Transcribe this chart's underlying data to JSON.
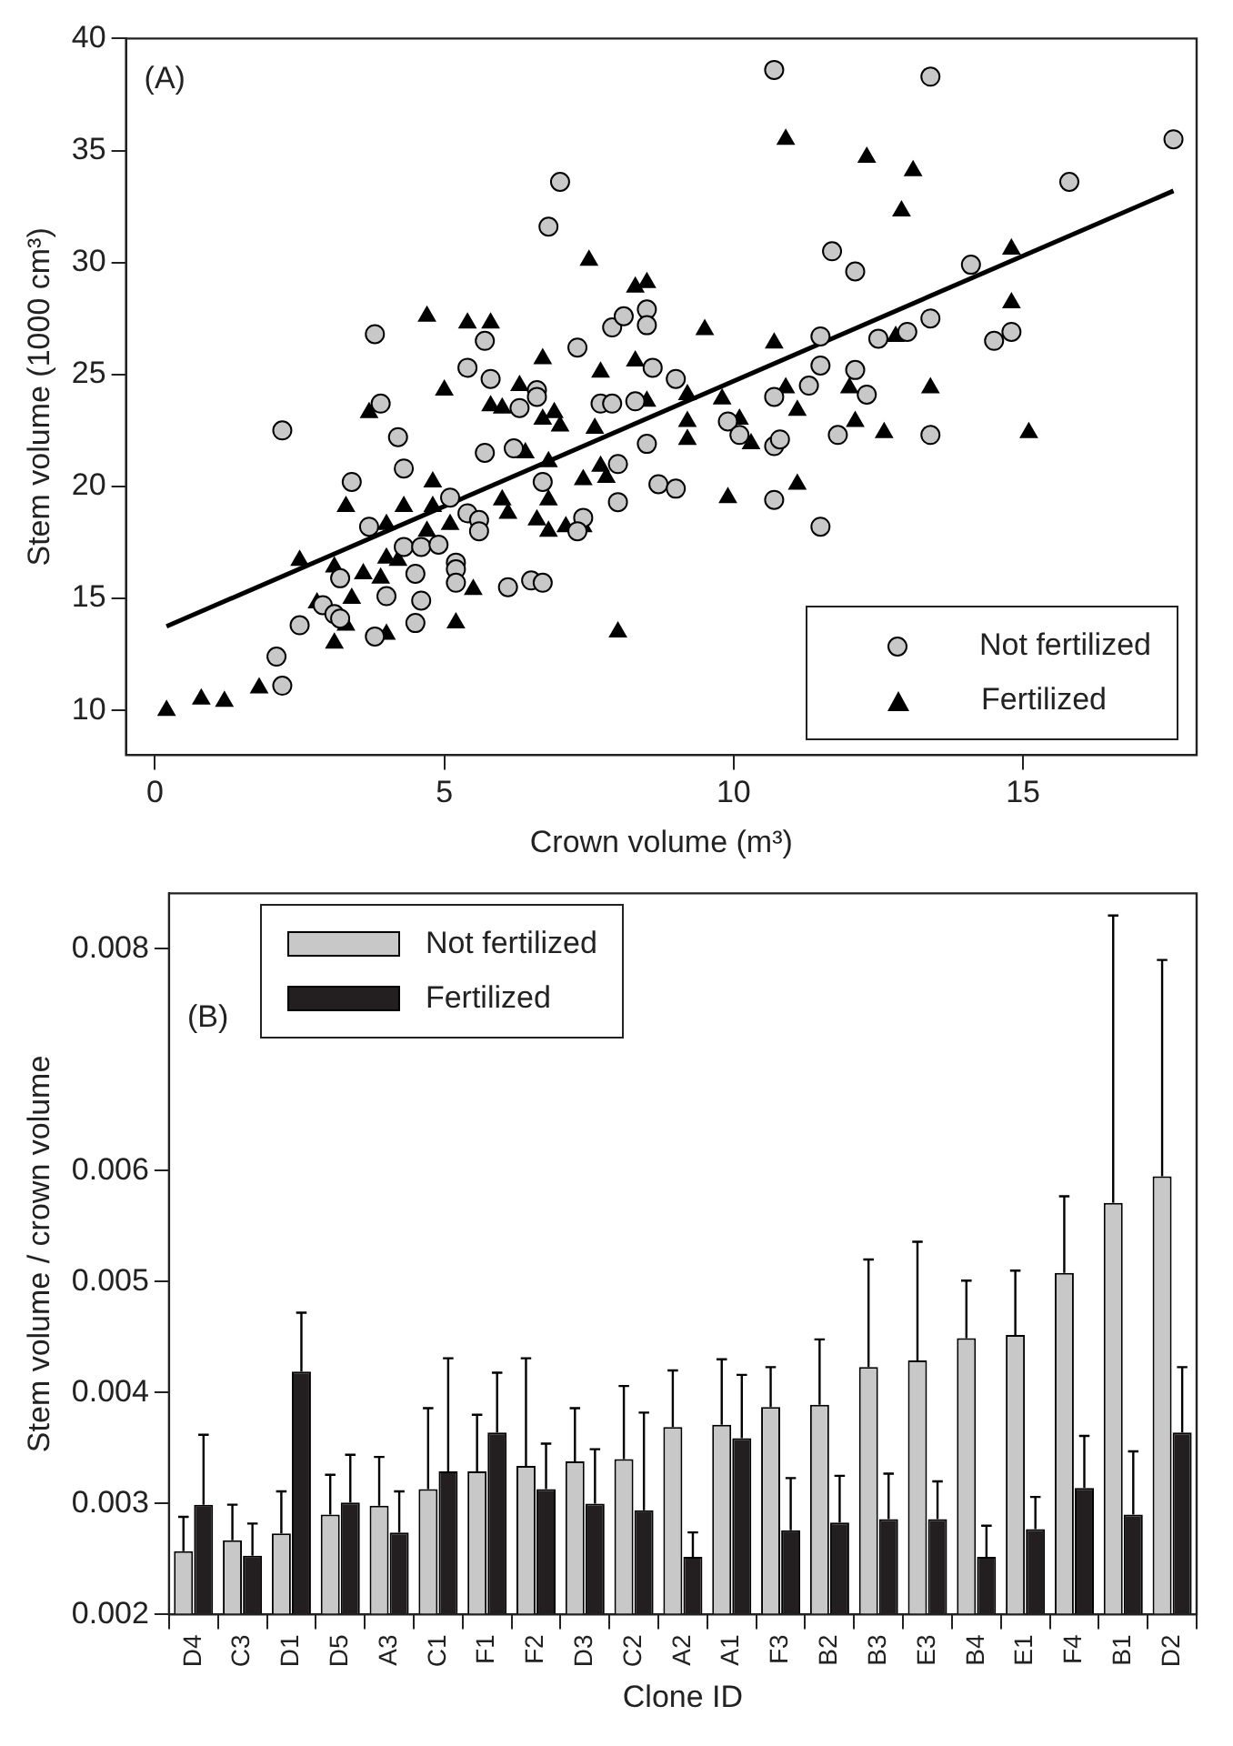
{
  "chart_data": [
    {
      "type": "scatter",
      "xlabel": "Crown volume (m³)",
      "ylabel": "Stem volume (1000 cm³)",
      "annotations": [
        "(A)"
      ],
      "legend": "bottom right",
      "xlim": [
        -0.5,
        18
      ],
      "ylim": [
        8,
        40
      ],
      "xticks": [
        0,
        5,
        10,
        15
      ],
      "yticks": [
        10,
        15,
        20,
        25,
        30,
        35,
        40
      ],
      "series": [
        {
          "name": "Not fertilized",
          "color": "#c8c8c8",
          "marker": "circle",
          "x": [
            7.0,
            6.8,
            3.8,
            3.9,
            2.2,
            4.2,
            3.4,
            4.3,
            5.4,
            5.8,
            5.7,
            7.3,
            7.9,
            8.1,
            8.5,
            8.5,
            8.6,
            6.6,
            6.6,
            6.3,
            6.2,
            5.7,
            6.7,
            7.7,
            7.9,
            8.3,
            8.5,
            8.0,
            8.7,
            8.0,
            7.4,
            7.3,
            5.1,
            5.4,
            5.6,
            5.6,
            3.7,
            4.3,
            4.6,
            4.9,
            5.2,
            5.2,
            5.2,
            4.5,
            6.1,
            6.5,
            6.7,
            3.2,
            4.0,
            4.6,
            2.9,
            3.1,
            3.2,
            2.5,
            4.5,
            3.8,
            2.1,
            2.2,
            10.7,
            13.4,
            17.6,
            15.8,
            11.7,
            12.1,
            14.1,
            11.5,
            13.4,
            12.5,
            13.0,
            14.5,
            14.8,
            9.0,
            11.5,
            12.1,
            11.3,
            10.7,
            12.3,
            9.9,
            10.1,
            10.7,
            10.8,
            11.8,
            13.4,
            9.0,
            10.7,
            11.5
          ],
          "values": [
            33.6,
            31.6,
            26.8,
            23.7,
            22.5,
            22.2,
            20.2,
            20.8,
            25.3,
            24.8,
            26.5,
            26.2,
            27.1,
            27.6,
            27.9,
            27.2,
            25.3,
            24.3,
            24.0,
            23.5,
            21.7,
            21.5,
            20.2,
            23.7,
            23.7,
            23.8,
            21.9,
            21.0,
            20.1,
            19.3,
            18.6,
            18.0,
            19.5,
            18.8,
            18.5,
            18.0,
            18.2,
            17.3,
            17.3,
            17.4,
            16.6,
            16.3,
            15.7,
            16.1,
            15.5,
            15.8,
            15.7,
            15.9,
            15.1,
            14.9,
            14.7,
            14.3,
            14.1,
            13.8,
            13.9,
            13.3,
            12.4,
            11.1,
            38.6,
            38.3,
            35.5,
            33.6,
            30.5,
            29.6,
            29.9,
            26.7,
            27.5,
            26.6,
            26.9,
            26.5,
            26.9,
            24.8,
            25.4,
            25.2,
            24.5,
            24.0,
            24.1,
            22.9,
            22.3,
            21.8,
            22.1,
            22.3,
            22.3,
            19.9,
            19.4,
            18.2
          ]
        },
        {
          "name": "Fertilized",
          "color": "#000000",
          "marker": "triangle",
          "x": [
            0.2,
            0.8,
            1.2,
            1.8,
            2.5,
            2.8,
            3.1,
            3.3,
            3.4,
            3.6,
            3.9,
            4.0,
            3.1,
            3.3,
            3.7,
            4.0,
            4.0,
            4.2,
            4.3,
            4.7,
            4.8,
            4.7,
            4.8,
            5.0,
            5.1,
            5.2,
            5.5,
            5.4,
            5.8,
            5.8,
            6.0,
            6.3,
            6.4,
            6.0,
            6.1,
            6.6,
            6.7,
            6.7,
            6.9,
            7.0,
            6.8,
            6.8,
            6.8,
            7.1,
            7.4,
            7.5,
            7.6,
            7.4,
            7.7,
            7.7,
            7.8,
            8.0,
            8.3,
            8.5,
            8.3,
            8.5,
            10.9,
            12.3,
            13.1,
            12.9,
            14.8,
            9.5,
            10.7,
            14.8,
            12.8,
            9.2,
            9.8,
            10.9,
            12.0,
            13.4,
            11.1,
            9.2,
            9.2,
            10.1,
            10.3,
            12.1,
            12.6,
            15.1,
            11.1,
            9.9
          ],
          "values": [
            10.0,
            10.5,
            10.4,
            11.0,
            16.7,
            14.8,
            13.0,
            13.8,
            15.0,
            16.1,
            15.9,
            13.4,
            16.4,
            19.1,
            23.3,
            18.3,
            16.8,
            16.7,
            19.1,
            27.6,
            20.2,
            18.0,
            19.1,
            24.3,
            18.3,
            13.9,
            15.4,
            27.3,
            27.3,
            23.6,
            23.5,
            24.5,
            21.5,
            19.4,
            18.8,
            18.5,
            25.7,
            23.0,
            23.3,
            22.7,
            21.1,
            19.4,
            18.0,
            18.2,
            18.2,
            30.1,
            22.6,
            20.3,
            25.1,
            20.9,
            20.4,
            13.5,
            28.9,
            29.1,
            25.6,
            23.8,
            35.5,
            34.7,
            34.1,
            32.3,
            30.6,
            27.0,
            26.4,
            28.2,
            26.7,
            24.1,
            23.9,
            24.4,
            24.4,
            24.4,
            23.4,
            22.9,
            22.1,
            23.0,
            21.9,
            22.9,
            22.4,
            22.4,
            20.1,
            19.5
          ]
        },
        {
          "type": "line",
          "color": "#000000",
          "marker": "none",
          "x": [
            0.2,
            17.6
          ],
          "values": [
            13.75,
            33.2
          ]
        }
      ]
    },
    {
      "type": "bar",
      "xlabel": "Clone ID",
      "ylabel": "Stem volume / crown volume",
      "annotations": [
        "(B)"
      ],
      "legend": "top left",
      "ylim": [
        0.002,
        0.0085
      ],
      "yticks": [
        0.002,
        0.003,
        0.004,
        0.005,
        0.006,
        0.008
      ],
      "categories": [
        "D4",
        "C3",
        "D1",
        "D5",
        "A3",
        "C1",
        "F1",
        "F2",
        "D3",
        "C2",
        "A2",
        "A1",
        "F3",
        "B2",
        "B3",
        "E3",
        "B4",
        "E1",
        "F4",
        "B1",
        "D2"
      ],
      "series": [
        {
          "name": "Not fertilized",
          "color": "#c8c8c8",
          "values": [
            0.00257,
            0.00267,
            0.00273,
            0.0029,
            0.00298,
            0.00313,
            0.00329,
            0.00334,
            0.00338,
            0.0034,
            0.00369,
            0.00371,
            0.00387,
            0.00389,
            0.00423,
            0.00429,
            0.00449,
            0.00452,
            0.00508,
            0.00571,
            0.00595
          ],
          "errors": [
            [
              0.00257,
              0.00288
            ],
            [
              0.00267,
              0.00299
            ],
            [
              0.00273,
              0.00311
            ],
            [
              0.0029,
              0.00326
            ],
            [
              0.00298,
              0.00342
            ],
            [
              0.00313,
              0.00386
            ],
            [
              0.00329,
              0.0038
            ],
            [
              0.00334,
              0.00431
            ],
            [
              0.00338,
              0.00386
            ],
            [
              0.0034,
              0.00406
            ],
            [
              0.00369,
              0.0042
            ],
            [
              0.00371,
              0.0043
            ],
            [
              0.00387,
              0.00423
            ],
            [
              0.00389,
              0.00448
            ],
            [
              0.00423,
              0.0052
            ],
            [
              0.00429,
              0.00536
            ],
            [
              0.00449,
              0.00501
            ],
            [
              0.00452,
              0.0051
            ],
            [
              0.00508,
              0.00577
            ],
            [
              0.00571,
              0.0083
            ],
            [
              0.00595,
              0.0079
            ]
          ]
        },
        {
          "name": "Fertilized",
          "color": "#231f20",
          "values": [
            0.00299,
            0.00253,
            0.00419,
            0.00301,
            0.00274,
            0.00329,
            0.00364,
            0.00313,
            0.003,
            0.00294,
            0.00252,
            0.00359,
            0.00276,
            0.00283,
            0.00286,
            0.00286,
            0.00252,
            0.00277,
            0.00314,
            0.0029,
            0.00364
          ],
          "errors": [
            [
              0.00299,
              0.00362
            ],
            [
              0.00253,
              0.00282
            ],
            [
              0.00419,
              0.00472
            ],
            [
              0.00301,
              0.00344
            ],
            [
              0.00274,
              0.00311
            ],
            [
              0.00329,
              0.00431
            ],
            [
              0.00364,
              0.00418
            ],
            [
              0.00313,
              0.00354
            ],
            [
              0.003,
              0.00349
            ],
            [
              0.00294,
              0.00382
            ],
            [
              0.00252,
              0.00274
            ],
            [
              0.00359,
              0.00416
            ],
            [
              0.00276,
              0.00323
            ],
            [
              0.00283,
              0.00325
            ],
            [
              0.00286,
              0.00327
            ],
            [
              0.00286,
              0.0032
            ],
            [
              0.00252,
              0.0028
            ],
            [
              0.00277,
              0.00306
            ],
            [
              0.00314,
              0.00361
            ],
            [
              0.0029,
              0.00347
            ],
            [
              0.00364,
              0.00423
            ]
          ]
        }
      ]
    }
  ]
}
